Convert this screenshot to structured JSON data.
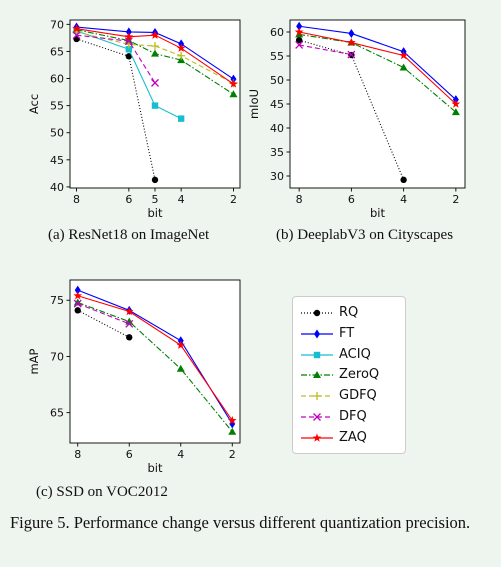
{
  "chart_data": [
    {
      "type": "line",
      "xlabel": "bit",
      "ylabel": "Acc",
      "x_ticks": [
        8,
        6,
        5,
        4,
        2
      ],
      "y_ticks": [
        40,
        45,
        50,
        55,
        60,
        65,
        70
      ],
      "xlim": [
        8.25,
        1.75
      ],
      "ylim": [
        39.8,
        70.8
      ],
      "caption": "(a) ResNet18 on ImageNet",
      "series": [
        {
          "name": "RQ",
          "x": [
            8,
            6,
            5
          ],
          "y": [
            67.3,
            64.1,
            41.3
          ]
        },
        {
          "name": "FT",
          "x": [
            8,
            6,
            5,
            4,
            2
          ],
          "y": [
            69.5,
            68.6,
            68.5,
            66.4,
            59.9
          ]
        },
        {
          "name": "ACIQ",
          "x": [
            8,
            6,
            5,
            4
          ],
          "y": [
            68.8,
            65.4,
            55.0,
            52.6
          ]
        },
        {
          "name": "ZeroQ",
          "x": [
            8,
            6,
            5,
            4,
            2
          ],
          "y": [
            69.0,
            67.0,
            64.6,
            63.4,
            57.1
          ]
        },
        {
          "name": "GDFQ",
          "x": [
            8,
            6,
            5,
            4,
            2
          ],
          "y": [
            68.6,
            66.3,
            66.0,
            64.2,
            59.1
          ]
        },
        {
          "name": "DFQ",
          "x": [
            8,
            6,
            5
          ],
          "y": [
            68.0,
            66.9,
            59.2
          ]
        },
        {
          "name": "ZAQ",
          "x": [
            8,
            6,
            5,
            4,
            2
          ],
          "y": [
            69.2,
            67.7,
            68.0,
            65.6,
            59.0
          ]
        }
      ]
    },
    {
      "type": "line",
      "xlabel": "bit",
      "ylabel": "mIoU",
      "x_ticks": [
        8,
        6,
        4,
        2
      ],
      "y_ticks": [
        30,
        35,
        40,
        45,
        50,
        55,
        60
      ],
      "xlim": [
        8.35,
        1.65
      ],
      "ylim": [
        27.5,
        62.5
      ],
      "caption": "(b) DeeplabV3 on Cityscapes",
      "series": [
        {
          "name": "RQ",
          "x": [
            8,
            6,
            4
          ],
          "y": [
            58.3,
            55.2,
            29.2
          ]
        },
        {
          "name": "FT",
          "x": [
            8,
            6,
            4,
            2
          ],
          "y": [
            61.2,
            59.7,
            55.9,
            45.9
          ]
        },
        {
          "name": "ZeroQ",
          "x": [
            8,
            6,
            4,
            2
          ],
          "y": [
            59.5,
            57.8,
            52.6,
            43.3
          ]
        },
        {
          "name": "DFQ",
          "x": [
            8,
            6
          ],
          "y": [
            57.3,
            55.3
          ]
        },
        {
          "name": "ZAQ",
          "x": [
            8,
            6,
            4,
            2
          ],
          "y": [
            60.0,
            57.8,
            55.1,
            45.0
          ]
        }
      ]
    },
    {
      "type": "line",
      "xlabel": "bit",
      "ylabel": "mAP",
      "x_ticks": [
        8,
        6,
        4,
        2
      ],
      "y_ticks": [
        65,
        70,
        75
      ],
      "xlim": [
        8.3,
        1.7
      ],
      "ylim": [
        62.3,
        76.8
      ],
      "caption": "(c) SSD on VOC2012",
      "series": [
        {
          "name": "RQ",
          "x": [
            8,
            6
          ],
          "y": [
            74.1,
            71.7
          ]
        },
        {
          "name": "FT",
          "x": [
            8,
            6,
            4,
            2
          ],
          "y": [
            75.9,
            74.1,
            71.4,
            64.0
          ]
        },
        {
          "name": "ZeroQ",
          "x": [
            8,
            6,
            4,
            2
          ],
          "y": [
            74.8,
            73.1,
            68.9,
            63.3
          ]
        },
        {
          "name": "DFQ",
          "x": [
            8,
            6
          ],
          "y": [
            74.7,
            72.9
          ]
        },
        {
          "name": "ZAQ",
          "x": [
            8,
            6,
            4,
            2
          ],
          "y": [
            75.4,
            74.0,
            71.0,
            64.3
          ]
        }
      ]
    }
  ],
  "legend": [
    {
      "name": "RQ",
      "color": "#000000",
      "dash": "1,2",
      "marker": "circle"
    },
    {
      "name": "FT",
      "color": "#0000ff",
      "dash": "",
      "marker": "diamond"
    },
    {
      "name": "ACIQ",
      "color": "#17becf",
      "dash": "",
      "marker": "square"
    },
    {
      "name": "ZeroQ",
      "color": "#008000",
      "dash": "6,2,1.5,2",
      "marker": "triangle"
    },
    {
      "name": "GDFQ",
      "color": "#bcbd22",
      "dash": "5,3",
      "marker": "plus"
    },
    {
      "name": "DFQ",
      "color": "#c000c0",
      "dash": "5,3",
      "marker": "x"
    },
    {
      "name": "ZAQ",
      "color": "#ff0000",
      "dash": "",
      "marker": "star"
    }
  ],
  "captions": {
    "a": "(a) ResNet18 on ImageNet",
    "b": "(b) DeeplabV3 on Cityscapes",
    "c": "(c) SSD on VOC2012",
    "figure": "Figure 5. Performance change versus different quantization precision."
  }
}
